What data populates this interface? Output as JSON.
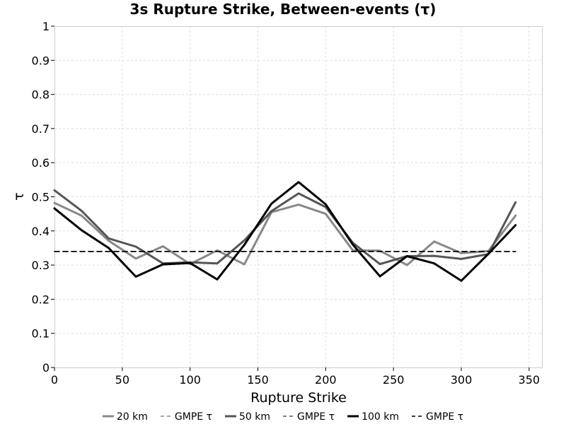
{
  "chart_data": {
    "type": "line",
    "title": "3s Rupture Strike, Between-events (τ)",
    "xlabel": "Rupture Strike",
    "ylabel": "τ",
    "xlim": [
      0,
      360
    ],
    "ylim": [
      0,
      1
    ],
    "x_ticks": [
      0,
      50,
      100,
      150,
      200,
      250,
      300,
      350
    ],
    "y_ticks": [
      0,
      0.1,
      0.2,
      0.3,
      0.4,
      0.5,
      0.6,
      0.7,
      0.8,
      0.9,
      1
    ],
    "y_tick_labels": [
      "0",
      "0.1",
      "0.2",
      "0.3",
      "0.4",
      "0.5",
      "0.6",
      "0.7",
      "0.8",
      "0.9",
      "1"
    ],
    "grid": true,
    "legend_position": "bottom",
    "x": [
      0,
      20,
      40,
      60,
      80,
      100,
      120,
      140,
      160,
      180,
      200,
      220,
      240,
      260,
      280,
      300,
      320,
      340
    ],
    "series": [
      {
        "name": "20 km",
        "color": "#888888",
        "dash": "solid",
        "values": [
          0.482,
          0.445,
          0.371,
          0.319,
          0.355,
          0.303,
          0.343,
          0.302,
          0.455,
          0.477,
          0.45,
          0.343,
          0.342,
          0.3,
          0.369,
          0.335,
          0.341,
          0.445
        ]
      },
      {
        "name": "GMPE τ",
        "color": "#888888",
        "dash": "dashed",
        "values": [
          0.34,
          0.34,
          0.34,
          0.34,
          0.34,
          0.34,
          0.34,
          0.34,
          0.34,
          0.34,
          0.34,
          0.34,
          0.34,
          0.34,
          0.34,
          0.34,
          0.34,
          0.34
        ]
      },
      {
        "name": "50 km",
        "color": "#555555",
        "dash": "solid",
        "values": [
          0.519,
          0.459,
          0.378,
          0.354,
          0.305,
          0.308,
          0.305,
          0.372,
          0.458,
          0.51,
          0.47,
          0.365,
          0.303,
          0.326,
          0.327,
          0.318,
          0.332,
          0.484
        ]
      },
      {
        "name": "GMPE τ",
        "color": "#555555",
        "dash": "dashed",
        "values": [
          0.34,
          0.34,
          0.34,
          0.34,
          0.34,
          0.34,
          0.34,
          0.34,
          0.34,
          0.34,
          0.34,
          0.34,
          0.34,
          0.34,
          0.34,
          0.34,
          0.34,
          0.34
        ]
      },
      {
        "name": "100 km",
        "color": "#000000",
        "dash": "solid",
        "values": [
          0.466,
          0.402,
          0.35,
          0.266,
          0.302,
          0.306,
          0.258,
          0.359,
          0.48,
          0.543,
          0.478,
          0.36,
          0.267,
          0.326,
          0.305,
          0.254,
          0.333,
          0.417
        ]
      },
      {
        "name": "GMPE τ",
        "color": "#000000",
        "dash": "dashed",
        "values": [
          0.34,
          0.34,
          0.34,
          0.34,
          0.34,
          0.34,
          0.34,
          0.34,
          0.34,
          0.34,
          0.34,
          0.34,
          0.34,
          0.34,
          0.34,
          0.34,
          0.34,
          0.34
        ]
      }
    ]
  }
}
